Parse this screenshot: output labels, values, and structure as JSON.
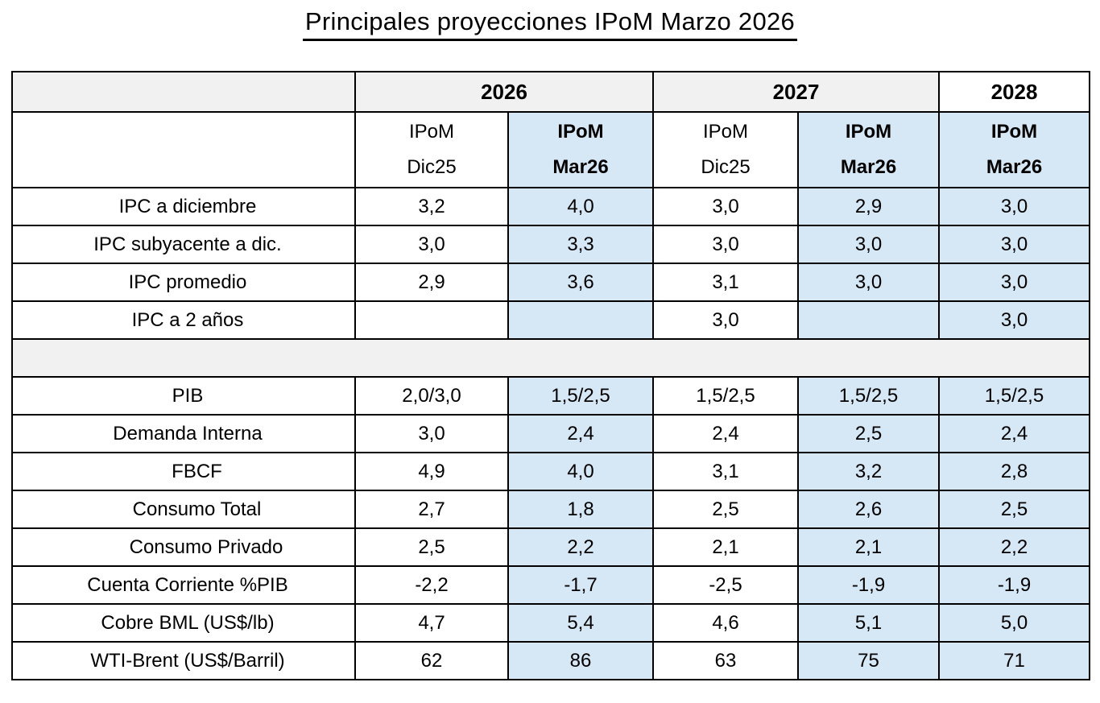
{
  "colors": {
    "highlight_blue": "#d6e7f5",
    "band_gray": "#f1f1f1",
    "border_black": "#000000",
    "text_black": "#000000",
    "background_white": "#ffffff"
  },
  "chart_data": {
    "type": "table",
    "title": "Principales proyecciones IPoM Marzo 2026",
    "year_groups": [
      {
        "label": "2026",
        "span": 2,
        "shaded": true
      },
      {
        "label": "2027",
        "span": 2,
        "shaded": true
      },
      {
        "label": "2028",
        "span": 1,
        "shaded": false
      }
    ],
    "column_headers": [
      {
        "line1": "IPoM",
        "line2": "Dic25",
        "highlight": false,
        "bold": false
      },
      {
        "line1": "IPoM",
        "line2": "Mar26",
        "highlight": true,
        "bold": true
      },
      {
        "line1": "IPoM",
        "line2": "Dic25",
        "highlight": false,
        "bold": false
      },
      {
        "line1": "IPoM",
        "line2": "Mar26",
        "highlight": true,
        "bold": true
      },
      {
        "line1": "IPoM",
        "line2": "Mar26",
        "highlight": true,
        "bold": true
      }
    ],
    "rows": [
      {
        "label": "IPC a diciembre",
        "indent": 0,
        "values": [
          "3,2",
          "4,0",
          "3,0",
          "2,9",
          "3,0"
        ]
      },
      {
        "label": "IPC subyacente a dic.",
        "indent": 0,
        "values": [
          "3,0",
          "3,3",
          "3,0",
          "3,0",
          "3,0"
        ]
      },
      {
        "label": "IPC promedio",
        "indent": 0,
        "values": [
          "2,9",
          "3,6",
          "3,1",
          "3,0",
          "3,0"
        ]
      },
      {
        "label": "IPC a 2 años",
        "indent": 0,
        "values": [
          "",
          "",
          "3,0",
          "",
          "3,0"
        ]
      },
      {
        "separator": true
      },
      {
        "label": "PIB",
        "indent": 0,
        "values": [
          "2,0/3,0",
          "1,5/2,5",
          "1,5/2,5",
          "1,5/2,5",
          "1,5/2,5"
        ]
      },
      {
        "label": "Demanda Interna",
        "indent": 0,
        "values": [
          "3,0",
          "2,4",
          "2,4",
          "2,5",
          "2,4"
        ]
      },
      {
        "label": "FBCF",
        "indent": 1,
        "values": [
          "4,9",
          "4,0",
          "3,1",
          "3,2",
          "2,8"
        ]
      },
      {
        "label": "Consumo Total",
        "indent": 1,
        "values": [
          "2,7",
          "1,8",
          "2,5",
          "2,6",
          "2,5"
        ]
      },
      {
        "label": "Consumo Privado",
        "indent": 2,
        "values": [
          "2,5",
          "2,2",
          "2,1",
          "2,1",
          "2,2"
        ]
      },
      {
        "label": "Cuenta Corriente %PIB",
        "indent": 0,
        "values": [
          "-2,2",
          "-1,7",
          "-2,5",
          "-1,9",
          "-1,9"
        ]
      },
      {
        "label": "Cobre BML (US$/lb)",
        "indent": 0,
        "values": [
          "4,7",
          "5,4",
          "4,6",
          "5,1",
          "5,0"
        ]
      },
      {
        "label": "WTI-Brent (US$/Barril)",
        "indent": 0,
        "values": [
          "62",
          "86",
          "63",
          "75",
          "71"
        ]
      }
    ]
  }
}
